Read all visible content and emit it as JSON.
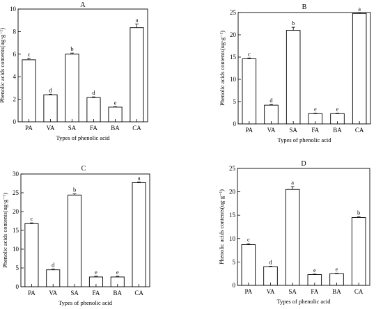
{
  "chart_data": [
    {
      "type": "bar",
      "title": "A",
      "categories": [
        "PA",
        "VA",
        "SA",
        "FA",
        "BA",
        "CA"
      ],
      "values": [
        5.5,
        2.4,
        6.0,
        2.15,
        1.3,
        8.35
      ],
      "errors": [
        0.12,
        0.05,
        0.1,
        0.06,
        0.04,
        0.32
      ],
      "significance": [
        "c",
        "d",
        "b",
        "d",
        "e",
        "a"
      ],
      "xlabel": "Types of phenolic acid",
      "ylabel": "Phenolic acids contents(ug·g⁻¹)",
      "ylim": [
        0,
        10
      ],
      "yticks": [
        0,
        2,
        4,
        6,
        8,
        10
      ]
    },
    {
      "type": "bar",
      "title": "B",
      "categories": [
        "PA",
        "VA",
        "SA",
        "FA",
        "BA",
        "CA"
      ],
      "values": [
        14.6,
        4.2,
        21.0,
        2.3,
        2.3,
        24.8
      ],
      "errors": [
        0.2,
        0.15,
        0.7,
        0.1,
        0.1,
        0.15
      ],
      "significance": [
        "c",
        "d",
        "b",
        "e",
        "e",
        "a"
      ],
      "xlabel": "Types of phenolic acid",
      "ylabel": "Phenolic acids contents(ug·g⁻¹)",
      "ylim": [
        0,
        25
      ],
      "yticks": [
        0,
        5,
        10,
        15,
        20,
        25
      ]
    },
    {
      "type": "bar",
      "title": "C",
      "categories": [
        "PA",
        "VA",
        "SA",
        "FA",
        "BA",
        "CA"
      ],
      "values": [
        16.8,
        4.5,
        24.4,
        2.6,
        2.6,
        27.7
      ],
      "errors": [
        0.2,
        0.2,
        0.3,
        0.2,
        0.2,
        0.2
      ],
      "significance": [
        "c",
        "d",
        "b",
        "e",
        "e",
        "a"
      ],
      "xlabel": "Types of phenolic acid",
      "ylabel": "Phenolic acids contents(ug·g⁻¹)",
      "ylim": [
        0,
        30
      ],
      "yticks": [
        0,
        5,
        10,
        15,
        20,
        25,
        30
      ]
    },
    {
      "type": "bar",
      "title": "D",
      "categories": [
        "PA",
        "VA",
        "SA",
        "FA",
        "BA",
        "CA"
      ],
      "values": [
        8.7,
        4.0,
        20.5,
        2.3,
        2.5,
        14.5
      ],
      "errors": [
        0.2,
        0.1,
        0.6,
        0.1,
        0.1,
        0.15
      ],
      "significance": [
        "c",
        "d",
        "a",
        "e",
        "e",
        "b"
      ],
      "xlabel": "Types of phenolic acid",
      "ylabel": "Phenolic acids contents(ug·g⁻¹)",
      "ylim": [
        0,
        25
      ],
      "yticks": [
        0,
        5,
        10,
        15,
        20,
        25
      ]
    }
  ]
}
